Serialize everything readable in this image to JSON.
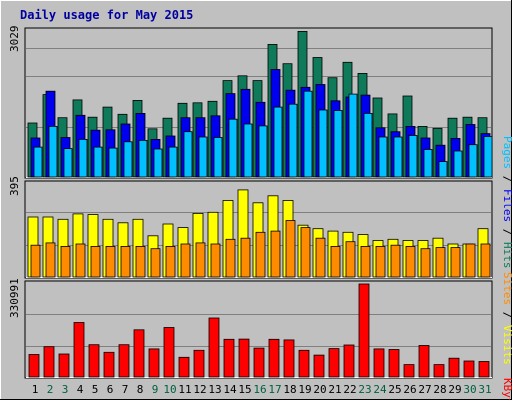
{
  "title": "Daily usage for May 2015",
  "colors": {
    "background": "#c0c0c0",
    "page": "#ffffff",
    "title": "#0000a0",
    "grid": "#808080",
    "hits": "#0f7a5a",
    "files": "#0000ee",
    "pages": "#00c0ff",
    "visits": "#ffff00",
    "sites": "#ff8c00",
    "kbytes": "#ff0000",
    "weekday_label": "#000000",
    "weekend_label": "#006040",
    "sep_dark": "#000000"
  },
  "legend": {
    "top": {
      "pages": "Pages",
      "sep1": " / ",
      "files": "Files",
      "sep2": " / ",
      "hits": "Hits"
    },
    "middle": {
      "sites": "Sites",
      "sep": " / ",
      "visits": "Visits"
    },
    "bottom": {
      "kbytes": "KBytes"
    }
  },
  "chart_data": [
    {
      "type": "bar",
      "title": "Daily usage for May 2015",
      "panel": "hits-files-pages",
      "ymax_label": "3029",
      "ylim": [
        0,
        3029
      ],
      "categories": [
        "1",
        "2",
        "3",
        "4",
        "5",
        "6",
        "7",
        "8",
        "9",
        "10",
        "11",
        "12",
        "13",
        "14",
        "15",
        "16",
        "17",
        "18",
        "19",
        "20",
        "21",
        "22",
        "23",
        "24",
        "25",
        "26",
        "27",
        "28",
        "29",
        "30",
        "31"
      ],
      "weekend": [
        false,
        true,
        true,
        false,
        false,
        false,
        false,
        false,
        true,
        true,
        false,
        false,
        false,
        false,
        false,
        true,
        true,
        false,
        false,
        false,
        false,
        false,
        true,
        true,
        false,
        false,
        false,
        false,
        false,
        true,
        true
      ],
      "series": [
        {
          "name": "Hits",
          "color": "#0f7a5a",
          "values": [
            1120,
            1710,
            1230,
            1600,
            1240,
            1450,
            1300,
            1590,
            1000,
            1220,
            1530,
            1540,
            1570,
            2000,
            2100,
            2000,
            2750,
            2350,
            3020,
            2480,
            2060,
            2380,
            2150,
            1640,
            1310,
            1680,
            1050,
            1010,
            1220,
            1240,
            1230
          ]
        },
        {
          "name": "Files",
          "color": "#0000ee",
          "values": [
            810,
            1780,
            820,
            1280,
            970,
            980,
            1100,
            1320,
            780,
            850,
            1230,
            1230,
            1270,
            1730,
            1820,
            1550,
            2230,
            1800,
            1860,
            1920,
            1580,
            1660,
            1700,
            1020,
            940,
            1050,
            810,
            660,
            800,
            1090,
            900
          ]
        },
        {
          "name": "Pages",
          "color": "#00c0ff",
          "values": [
            620,
            1050,
            590,
            780,
            620,
            600,
            730,
            760,
            580,
            620,
            940,
            830,
            820,
            1200,
            1100,
            1060,
            1450,
            1510,
            1780,
            1390,
            1380,
            1720,
            1320,
            830,
            830,
            860,
            570,
            320,
            540,
            670,
            840
          ]
        }
      ]
    },
    {
      "type": "bar",
      "panel": "visits-sites",
      "ymax_label": "395",
      "ylim": [
        0,
        395
      ],
      "categories": [
        "1",
        "2",
        "3",
        "4",
        "5",
        "6",
        "7",
        "8",
        "9",
        "10",
        "11",
        "12",
        "13",
        "14",
        "15",
        "16",
        "17",
        "18",
        "19",
        "20",
        "21",
        "22",
        "23",
        "24",
        "25",
        "26",
        "27",
        "28",
        "29",
        "30",
        "31"
      ],
      "series": [
        {
          "name": "Visits",
          "color": "#ffff00",
          "values": [
            255,
            255,
            245,
            268,
            265,
            245,
            230,
            245,
            175,
            225,
            210,
            270,
            275,
            325,
            370,
            315,
            345,
            325,
            220,
            205,
            195,
            190,
            180,
            155,
            160,
            155,
            155,
            165,
            140,
            140,
            205
          ]
        },
        {
          "name": "Sites",
          "color": "#ff8c00",
          "values": [
            135,
            145,
            130,
            140,
            130,
            130,
            130,
            130,
            120,
            130,
            140,
            145,
            140,
            160,
            165,
            190,
            195,
            240,
            210,
            165,
            130,
            150,
            130,
            130,
            135,
            130,
            120,
            125,
            125,
            140,
            140
          ]
        }
      ]
    },
    {
      "type": "bar",
      "panel": "kbytes",
      "ymax_label": "330991",
      "ylim": [
        0,
        330991
      ],
      "categories": [
        "1",
        "2",
        "3",
        "4",
        "5",
        "6",
        "7",
        "8",
        "9",
        "10",
        "11",
        "12",
        "13",
        "14",
        "15",
        "16",
        "17",
        "18",
        "19",
        "20",
        "21",
        "22",
        "23",
        "24",
        "25",
        "26",
        "27",
        "28",
        "29",
        "30",
        "31"
      ],
      "series": [
        {
          "name": "KBytes",
          "color": "#ff0000",
          "values": [
            80000,
            108000,
            82000,
            194000,
            115000,
            88000,
            115000,
            168000,
            100000,
            176000,
            70000,
            95000,
            210000,
            134000,
            135000,
            103000,
            134000,
            132000,
            95000,
            78000,
            101000,
            114000,
            330991,
            100000,
            98000,
            44000,
            112000,
            44000,
            67000,
            57000,
            55000
          ]
        }
      ]
    }
  ]
}
